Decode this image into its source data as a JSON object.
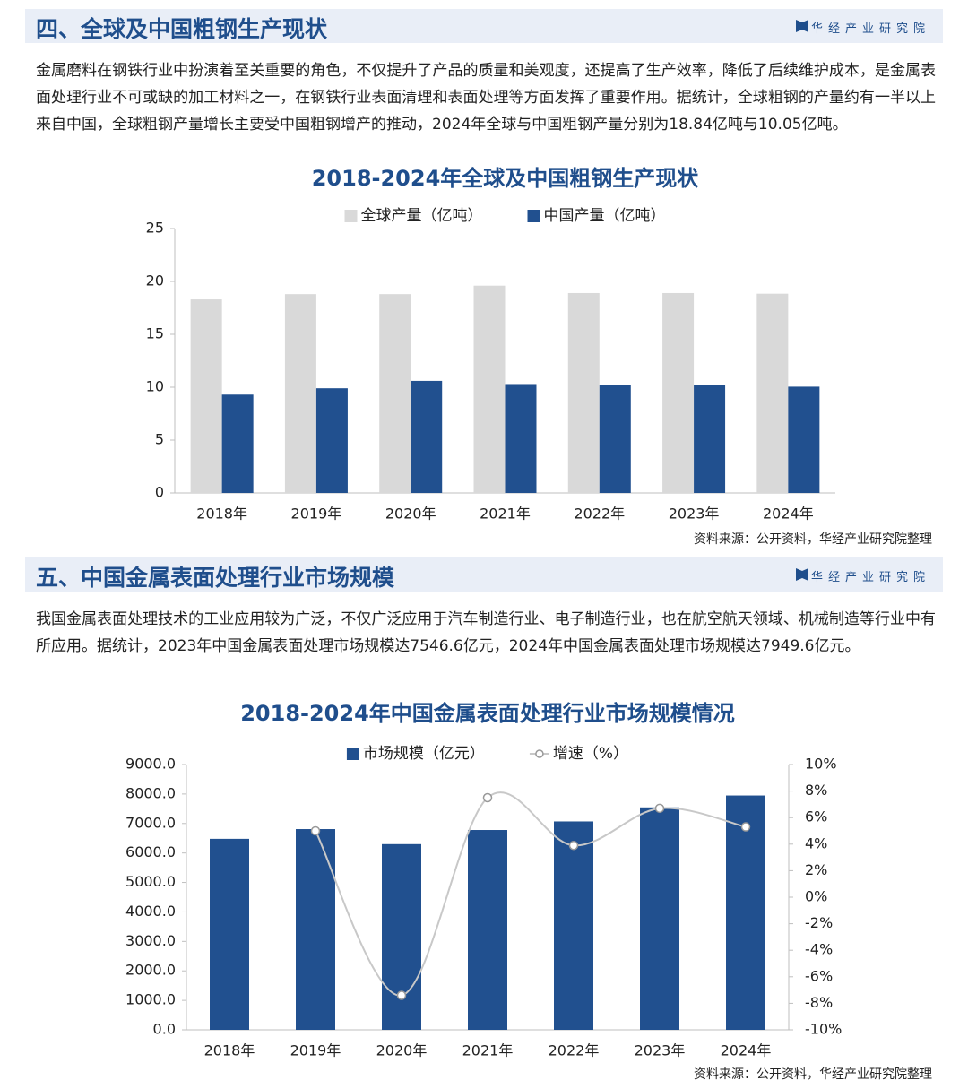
{
  "sections": [
    {
      "heading": "四、全球及中国粗钢生产现状",
      "brand": "华经产业研究院",
      "paragraph": "金属磨料在钢铁行业中扮演着至关重要的角色，不仅提升了产品的质量和美观度，还提高了生产效率，降低了后续维护成本，是金属表面处理行业不可或缺的加工材料之一，在钢铁行业表面清理和表面处理等方面发挥了重要作用。据统计，全球粗钢的产量约有一半以上来自中国，全球粗钢产量增长主要受中国粗钢增产的推动，2024年全球与中国粗钢产量分别为18.84亿吨与10.05亿吨。"
    },
    {
      "heading": "五、中国金属表面处理行业市场规模",
      "brand": "华经产业研究院",
      "paragraph": "我国金属表面处理技术的工业应用较为广泛，不仅广泛应用于汽车制造行业、电子制造行业，也在航空航天领域、机械制造等行业中有所应用。据统计，2023年中国金属表面处理市场规模达7546.6亿元，2024年中国金属表面处理市场规模达7949.6亿元。"
    }
  ],
  "chart_data": [
    {
      "type": "bar",
      "title": "2018-2024年全球及中国粗钢生产现状",
      "categories": [
        "2018年",
        "2019年",
        "2020年",
        "2021年",
        "2022年",
        "2023年",
        "2024年"
      ],
      "series": [
        {
          "name": "全球产量（亿吨）",
          "color": "#d9d9d9",
          "values": [
            18.3,
            18.8,
            18.8,
            19.6,
            18.9,
            18.9,
            18.84
          ]
        },
        {
          "name": "中国产量（亿吨）",
          "color": "#21508f",
          "values": [
            9.3,
            9.9,
            10.6,
            10.3,
            10.2,
            10.2,
            10.05
          ]
        }
      ],
      "ylim": [
        0,
        25
      ],
      "yticks": [
        0,
        5,
        10,
        15,
        20,
        25
      ],
      "source": "资料来源：公开资料，华经产业研究院整理"
    },
    {
      "type": "combo",
      "title": "2018-2024年中国金属表面处理行业市场规模情况",
      "categories": [
        "2018年",
        "2019年",
        "2020年",
        "2021年",
        "2022年",
        "2023年",
        "2024年"
      ],
      "series": [
        {
          "name": "市场规模（亿元）",
          "type": "bar",
          "color": "#21508f",
          "values": [
            6480,
            6810,
            6300,
            6780,
            7070,
            7546.6,
            7949.6
          ]
        },
        {
          "name": "增速（%）",
          "type": "line",
          "axis": "y2",
          "color": "#c8c8c8",
          "values": [
            null,
            5.0,
            -7.4,
            7.5,
            3.9,
            6.7,
            5.3
          ]
        }
      ],
      "ylim": [
        0,
        9000
      ],
      "yticks": [
        {
          "value": 0,
          "label": "0.0"
        },
        {
          "value": 1000,
          "label": "1000.0"
        },
        {
          "value": 2000,
          "label": "2000.0"
        },
        {
          "value": 3000,
          "label": "3000.0"
        },
        {
          "value": 4000,
          "label": "4000.0"
        },
        {
          "value": 5000,
          "label": "5000.0"
        },
        {
          "value": 6000,
          "label": "6000.0"
        },
        {
          "value": 7000,
          "label": "7000.0"
        },
        {
          "value": 8000,
          "label": "8000.0"
        },
        {
          "value": 9000,
          "label": "9000.0"
        }
      ],
      "y2lim": [
        -10,
        10
      ],
      "y2ticks": [
        {
          "value": -10,
          "label": "-10%"
        },
        {
          "value": -8,
          "label": "-8%"
        },
        {
          "value": -6,
          "label": "-6%"
        },
        {
          "value": -4,
          "label": "-4%"
        },
        {
          "value": -2,
          "label": "-2%"
        },
        {
          "value": 0,
          "label": "0%"
        },
        {
          "value": 2,
          "label": "2%"
        },
        {
          "value": 4,
          "label": "4%"
        },
        {
          "value": 6,
          "label": "6%"
        },
        {
          "value": 8,
          "label": "8%"
        },
        {
          "value": 10,
          "label": "10%"
        }
      ],
      "source": "资料来源：公开资料，华经产业研究院整理"
    }
  ]
}
